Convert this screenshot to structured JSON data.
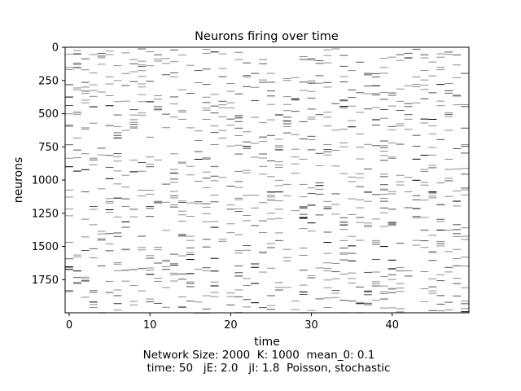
{
  "chart_data": {
    "type": "raster",
    "title": "Neurons firing over time",
    "xlabel": "time",
    "ylabel": "neurons",
    "xlim": [
      -0.5,
      49.5
    ],
    "ylim": [
      1999.5,
      -0.5
    ],
    "y_inverted": true,
    "x_ticks": [
      0,
      10,
      20,
      30,
      40
    ],
    "y_ticks": [
      0,
      250,
      500,
      750,
      1000,
      1250,
      1500,
      1750
    ],
    "grid": false,
    "legend": "none",
    "colormap": "gray_r",
    "spike_color": "#000000",
    "background_color": "#ffffff",
    "n_neurons": 2000,
    "n_timesteps": 50,
    "spike_probability": 0.08,
    "note": "Sparse random spike raster; spikes are drawn as short horizontal marks at (time, neuron) positions."
  },
  "caption": {
    "line1": "Network Size: 2000  K: 1000  mean_0: 0.1",
    "line2": "time: 50   jE: 2.0   jI: 1.8  Poisson, stochastic"
  }
}
